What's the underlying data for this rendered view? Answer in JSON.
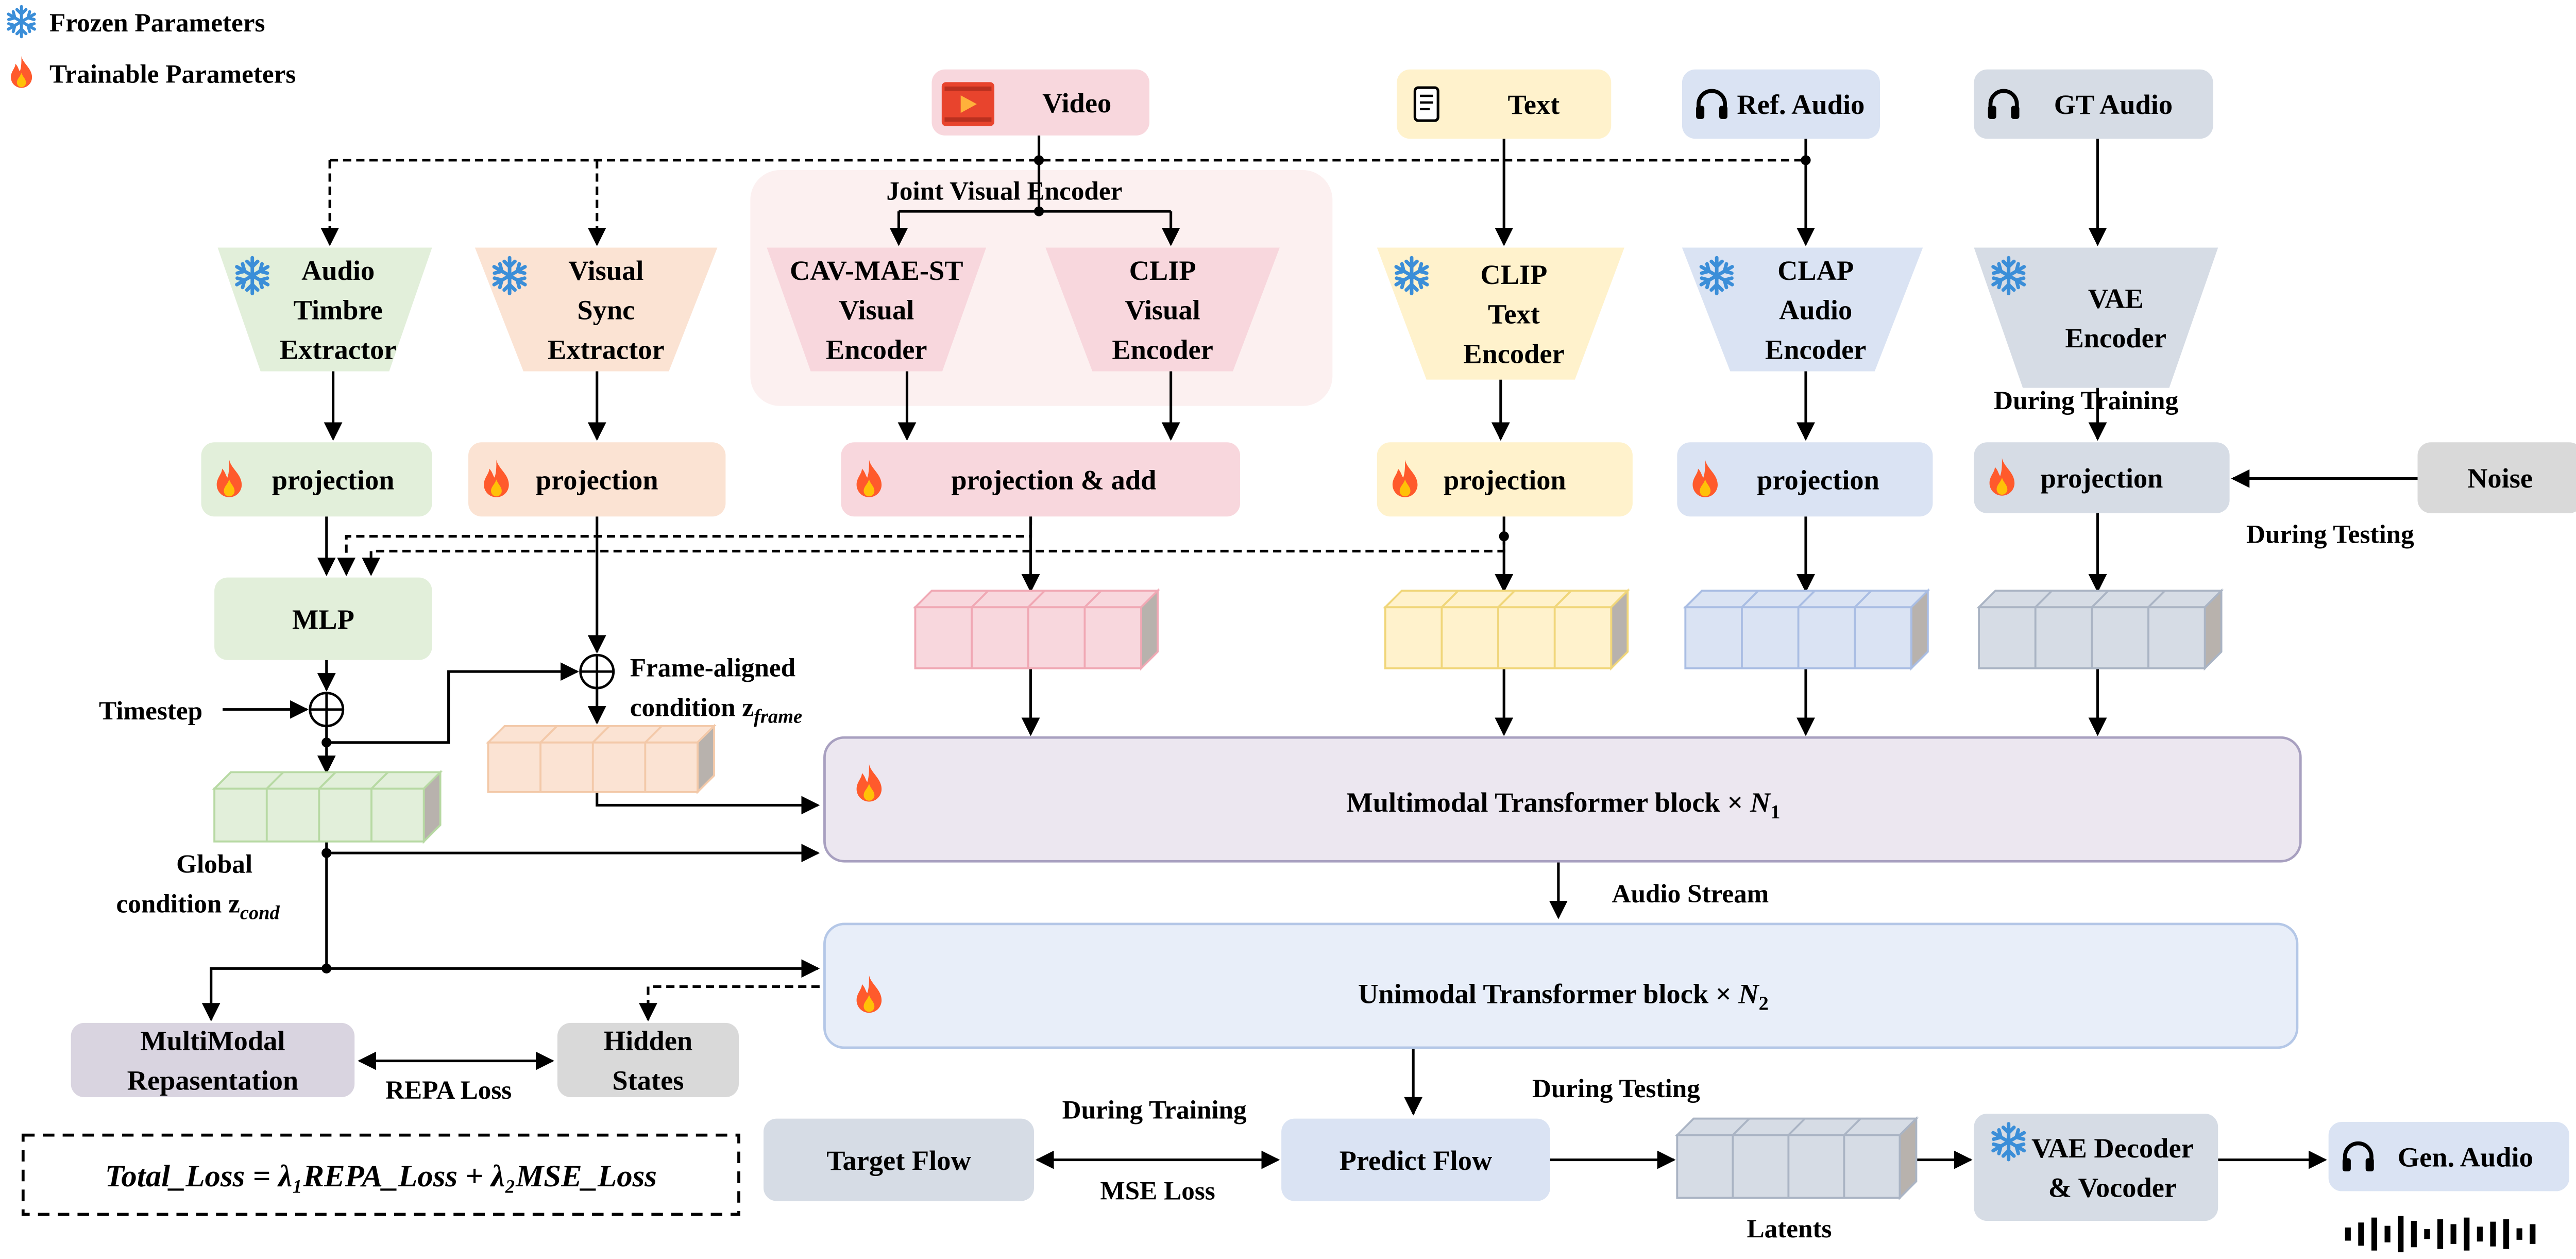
{
  "legend": {
    "frozen": "Frozen Parameters",
    "trainable": "Trainable Parameters"
  },
  "nodes": {
    "video": [
      "Video"
    ],
    "text": [
      "Text"
    ],
    "ref_audio": [
      "Ref. Audio"
    ],
    "gt_audio": [
      "GT Audio"
    ],
    "audio_timbre": [
      "Audio",
      "Timbre",
      "Extractor"
    ],
    "visual_sync": [
      "Visual",
      "Sync",
      "Extractor"
    ],
    "cavmae": [
      "CAV-MAE-ST",
      "Visual",
      "Encoder"
    ],
    "clip_visual": [
      "CLIP",
      "Visual",
      "Encoder"
    ],
    "clip_text": [
      "CLIP",
      "Text",
      "Encoder"
    ],
    "clap": [
      "CLAP",
      "Audio",
      "Encoder"
    ],
    "vae_encoder": [
      "VAE",
      "Encoder"
    ],
    "proj_green": [
      "projection"
    ],
    "proj_orange": [
      "projection"
    ],
    "proj_pink": [
      "projection & add"
    ],
    "proj_yellow": [
      "projection"
    ],
    "proj_blue": [
      "projection"
    ],
    "proj_gray": [
      "projection"
    ],
    "noise": [
      "Noise"
    ],
    "mlp": [
      "MLP"
    ],
    "mm_repr": [
      "MultiModal",
      "Repasentation"
    ],
    "hidden_states": [
      "Hidden",
      "States"
    ],
    "target_flow": [
      "Target Flow"
    ],
    "predict_flow": [
      "Predict Flow"
    ],
    "vae_decoder": [
      "VAE Decoder",
      "& Vocoder"
    ],
    "gen_audio": [
      "Gen. Audio"
    ]
  },
  "joint_visual_encoder": "Joint Visual Encoder",
  "multimodal_block": {
    "label": "Multimodal Transformer block  × ",
    "var": "N",
    "sub": "1"
  },
  "unimodal_block": {
    "label": "Unimodal Transformer block  × ",
    "var": "N",
    "sub": "2"
  },
  "labels": {
    "timestep": "Timestep",
    "frame_aligned_1": "Frame-aligned",
    "frame_aligned_2": "condition z",
    "frame_sub": "frame",
    "global_1": "Global",
    "global_2": "condition z",
    "global_sub": "cond",
    "during_training_top": "During Training",
    "during_testing_top": "During Testing",
    "audio_stream": "Audio Stream",
    "repa_loss": "REPA Loss",
    "during_training_bottom": "During Training",
    "during_testing_bottom": "During Testing",
    "mse_loss": "MSE Loss",
    "latents": "Latents"
  },
  "formula": "Total_Loss = λ₁REPA_Loss + λ₂MSE_Loss",
  "colors": {
    "green": "#e2efda",
    "orange": "#fbe3d3",
    "pink": "#f8d7dd",
    "yellow": "#fff2cc",
    "blue": "#dae3f3",
    "gray": "#d6dce5",
    "purple": "#ece7f0",
    "snowflake": "#3b8ed8",
    "fire": "#ff5a2c"
  }
}
